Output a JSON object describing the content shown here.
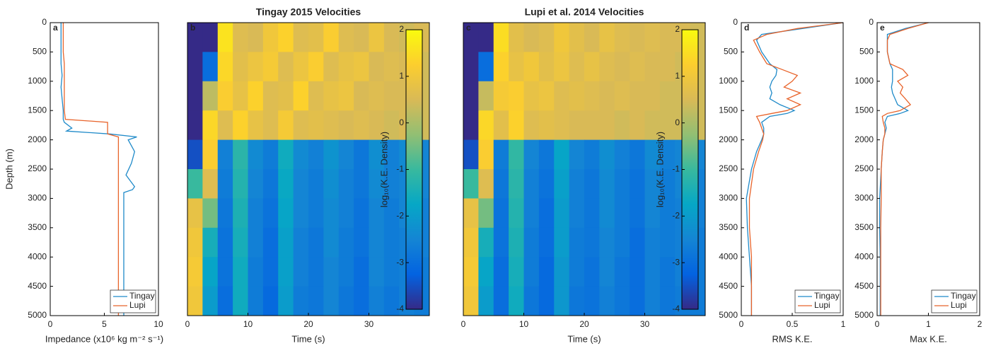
{
  "chart_data": [
    {
      "type": "line",
      "label": "a",
      "xlabel": "Impedance (x10⁶ kg m⁻² s⁻¹)",
      "ylabel": "Depth (m)",
      "xlim": [
        0,
        10
      ],
      "xticks": [
        0,
        5,
        10
      ],
      "ylim": [
        0,
        5000
      ],
      "yreverse": true,
      "yticks": [
        0,
        500,
        1000,
        1500,
        2000,
        2500,
        3000,
        3500,
        4000,
        4500,
        5000
      ],
      "y": [
        0,
        250,
        500,
        700,
        900,
        1100,
        1300,
        1500,
        1650,
        1700,
        1800,
        1850,
        1900,
        1950,
        2000,
        2200,
        2400,
        2600,
        2800,
        2850,
        2900,
        3500,
        4000,
        4500,
        5000
      ],
      "series": [
        {
          "name": "Tingay",
          "color": "#1f8ac9",
          "values": [
            1.0,
            1.0,
            1.0,
            1.0,
            1.1,
            1.0,
            1.1,
            1.2,
            1.2,
            1.3,
            2.0,
            1.5,
            5.5,
            8.0,
            7.2,
            7.8,
            7.5,
            7.0,
            7.8,
            7.6,
            6.8,
            6.8,
            6.8,
            6.8,
            6.8
          ]
        },
        {
          "name": "Lupi",
          "color": "#e8632a",
          "values": [
            1.2,
            1.2,
            1.2,
            1.3,
            1.3,
            1.3,
            1.3,
            1.3,
            1.4,
            5.3,
            5.3,
            5.3,
            5.3,
            6.3,
            6.3,
            6.3,
            6.3,
            6.3,
            6.3,
            6.3,
            6.3,
            6.3,
            6.3,
            6.3,
            6.3
          ]
        }
      ],
      "legend": "lower right"
    },
    {
      "type": "heatmap",
      "label": "b",
      "title": "Tingay 2015 Velocities",
      "xlabel": "Time (s)",
      "xlim": [
        0,
        40
      ],
      "xticks": [
        0,
        10,
        20,
        30
      ],
      "ylim": [
        0,
        5000
      ],
      "yreverse": true,
      "values": [
        [
          -4,
          -4,
          1.6,
          0.6,
          0.5,
          1.0,
          1.3,
          0.6,
          0.7,
          1.2,
          0.6,
          0.5,
          0.9,
          0.5,
          0.4,
          0.5
        ],
        [
          -4,
          -3,
          1.4,
          0.7,
          0.9,
          1.1,
          0.6,
          0.9,
          1.2,
          0.6,
          0.8,
          0.9,
          0.5,
          0.6,
          0.5,
          0.4
        ],
        [
          -4,
          0.2,
          1.2,
          0.8,
          1.3,
          0.6,
          0.7,
          1.3,
          0.6,
          0.8,
          0.9,
          0.5,
          0.6,
          0.5,
          0.5,
          0.4
        ],
        [
          -4,
          1.4,
          0.6,
          1.3,
          0.8,
          0.6,
          1.1,
          0.6,
          0.7,
          0.6,
          0.5,
          0.6,
          0.5,
          0.4,
          0.5,
          0.4
        ],
        [
          -3.5,
          1.2,
          -2.6,
          -1.2,
          -2.4,
          -2.7,
          -1.6,
          -2.4,
          -2.6,
          -2.2,
          -2.5,
          -2.8,
          -2.3,
          -2.6,
          -2.4,
          -2.5
        ],
        [
          -1,
          0.6,
          -2.7,
          -1.3,
          -2.5,
          -2.8,
          -1.7,
          -2.5,
          -2.7,
          -2.3,
          -2.6,
          -2.8,
          -2.4,
          -2.6,
          -2.5,
          -2.5
        ],
        [
          0.8,
          -0.5,
          -2.8,
          -1.4,
          -2.6,
          -2.9,
          -1.8,
          -2.5,
          -2.7,
          -2.4,
          -2.6,
          -2.9,
          -2.5,
          -2.7,
          -2.5,
          -2.6
        ],
        [
          1.0,
          -1.5,
          -2.9,
          -1.5,
          -2.6,
          -3.0,
          -1.9,
          -2.6,
          -2.8,
          -2.4,
          -2.7,
          -2.9,
          -2.5,
          -2.7,
          -2.6,
          -2.6
        ],
        [
          1.1,
          -1.8,
          -2.9,
          -1.6,
          -2.7,
          -3.0,
          -1.9,
          -2.6,
          -2.8,
          -2.5,
          -2.7,
          -3.0,
          -2.5,
          -2.7,
          -2.6,
          -2.7
        ],
        [
          1.0,
          -2.0,
          -3.0,
          -1.6,
          -2.7,
          -3.1,
          -2.0,
          -2.7,
          -2.8,
          -2.5,
          -2.8,
          -3.0,
          -2.6,
          -2.8,
          -2.6,
          -2.7
        ]
      ],
      "colormap": [
        "#352a87",
        "#0363e1",
        "#1485d4",
        "#06a7c6",
        "#38b99e",
        "#92bf73",
        "#d9ba56",
        "#fcce2e",
        "#f9fb0e"
      ],
      "clim": [
        -4,
        2
      ],
      "cticks": [
        -4,
        -3,
        -2,
        -1,
        0,
        1,
        2
      ],
      "clabel": "log₁₀(K.E. Density)"
    },
    {
      "type": "heatmap",
      "label": "c",
      "title": "Lupi et al. 2014 Velocities",
      "xlabel": "Time (s)",
      "xlim": [
        0,
        40
      ],
      "xticks": [
        0,
        10,
        20,
        30
      ],
      "ylim": [
        0,
        5000
      ],
      "yreverse": true,
      "values": [
        [
          -4,
          -4,
          1.5,
          0.7,
          0.5,
          0.6,
          1.0,
          0.7,
          0.5,
          0.8,
          0.6,
          0.5,
          0.6,
          0.5,
          0.5,
          0.4
        ],
        [
          -4,
          -3,
          1.3,
          0.8,
          1.0,
          0.7,
          0.9,
          0.6,
          0.8,
          0.6,
          0.5,
          0.6,
          0.5,
          0.5,
          0.4,
          0.4
        ],
        [
          -4,
          0.3,
          1.1,
          1.2,
          0.8,
          0.9,
          0.6,
          0.7,
          0.6,
          0.5,
          0.6,
          0.5,
          0.5,
          0.4,
          0.4,
          0.4
        ],
        [
          -4,
          1.4,
          0.7,
          1.3,
          0.6,
          0.7,
          0.6,
          0.5,
          0.5,
          0.5,
          0.4,
          0.5,
          0.4,
          0.4,
          0.4,
          0.4
        ],
        [
          -3.5,
          1.2,
          -2.7,
          -1.1,
          -2.5,
          -2.8,
          -1.8,
          -2.5,
          -2.7,
          -2.3,
          -2.6,
          -2.8,
          -2.4,
          -2.6,
          -2.5,
          -2.5
        ],
        [
          -1,
          0.6,
          -2.8,
          -1.2,
          -2.6,
          -2.9,
          -1.9,
          -2.6,
          -2.8,
          -2.4,
          -2.7,
          -2.9,
          -2.5,
          -2.7,
          -2.5,
          -2.6
        ],
        [
          0.8,
          -0.5,
          -2.9,
          -1.3,
          -2.6,
          -3.0,
          -2.0,
          -2.6,
          -2.8,
          -2.4,
          -2.7,
          -2.9,
          -2.5,
          -2.7,
          -2.6,
          -2.6
        ],
        [
          1.0,
          -1.5,
          -2.9,
          -1.4,
          -2.7,
          -3.0,
          -2.0,
          -2.7,
          -2.8,
          -2.5,
          -2.7,
          -3.0,
          -2.6,
          -2.7,
          -2.6,
          -2.7
        ],
        [
          1.1,
          -1.8,
          -3.0,
          -1.5,
          -2.7,
          -3.1,
          -2.1,
          -2.7,
          -2.9,
          -2.5,
          -2.8,
          -3.0,
          -2.6,
          -2.8,
          -2.6,
          -2.7
        ],
        [
          1.0,
          -2.0,
          -3.0,
          -1.6,
          -2.8,
          -3.1,
          -2.1,
          -2.8,
          -2.9,
          -2.6,
          -2.8,
          -3.0,
          -2.6,
          -2.8,
          -2.7,
          -2.7
        ]
      ],
      "colormap": [
        "#352a87",
        "#0363e1",
        "#1485d4",
        "#06a7c6",
        "#38b99e",
        "#92bf73",
        "#d9ba56",
        "#fcce2e",
        "#f9fb0e"
      ],
      "clim": [
        -4,
        2
      ],
      "cticks": [
        -4,
        -3,
        -2,
        -1,
        0,
        1,
        2
      ],
      "clabel": "log₁₀(K.E. Density)"
    },
    {
      "type": "line",
      "label": "d",
      "xlabel": "RMS K.E.",
      "xlim": [
        0,
        1
      ],
      "xticks": [
        0,
        0.5,
        1
      ],
      "ylim": [
        0,
        5000
      ],
      "yreverse": true,
      "yticks": [
        0,
        500,
        1000,
        1500,
        2000,
        2500,
        3000,
        3500,
        4000,
        4500,
        5000
      ],
      "y": [
        0,
        100,
        200,
        300,
        500,
        700,
        800,
        900,
        1000,
        1100,
        1200,
        1300,
        1400,
        1500,
        1550,
        1600,
        1700,
        1800,
        1900,
        2000,
        2200,
        2500,
        3000,
        3500,
        4000,
        4500,
        5000
      ],
      "series": [
        {
          "name": "Tingay",
          "color": "#1f8ac9",
          "values": [
            1.0,
            0.6,
            0.2,
            0.15,
            0.2,
            0.28,
            0.35,
            0.34,
            0.3,
            0.28,
            0.3,
            0.28,
            0.38,
            0.52,
            0.45,
            0.28,
            0.2,
            0.22,
            0.22,
            0.2,
            0.15,
            0.1,
            0.05,
            0.06,
            0.08,
            0.1,
            0.1
          ]
        },
        {
          "name": "Lupi",
          "color": "#e8632a",
          "values": [
            1.0,
            0.55,
            0.25,
            0.12,
            0.18,
            0.25,
            0.4,
            0.55,
            0.5,
            0.42,
            0.58,
            0.45,
            0.58,
            0.45,
            0.3,
            0.15,
            0.18,
            0.2,
            0.22,
            0.21,
            0.17,
            0.12,
            0.08,
            0.08,
            0.1,
            0.1,
            0.1
          ]
        }
      ],
      "legend": "lower right"
    },
    {
      "type": "line",
      "label": "e",
      "xlabel": "Max K.E.",
      "xlim": [
        0,
        2
      ],
      "xticks": [
        0,
        1,
        2
      ],
      "ylim": [
        0,
        5000
      ],
      "yreverse": true,
      "yticks": [
        0,
        500,
        1000,
        1500,
        2000,
        2500,
        3000,
        3500,
        4000,
        4500,
        5000
      ],
      "y": [
        0,
        100,
        200,
        300,
        500,
        700,
        800,
        900,
        1000,
        1100,
        1200,
        1300,
        1400,
        1500,
        1550,
        1600,
        1700,
        1800,
        1900,
        2000,
        2200,
        2500,
        3000,
        3500,
        4000,
        4500,
        5000
      ],
      "series": [
        {
          "name": "Tingay",
          "color": "#1f8ac9",
          "values": [
            1.0,
            0.55,
            0.2,
            0.2,
            0.2,
            0.25,
            0.3,
            0.3,
            0.3,
            0.28,
            0.3,
            0.35,
            0.4,
            0.6,
            0.45,
            0.2,
            0.15,
            0.18,
            0.15,
            0.12,
            0.1,
            0.08,
            0.05,
            0.05,
            0.06,
            0.06,
            0.06
          ]
        },
        {
          "name": "Lupi",
          "color": "#e8632a",
          "values": [
            1.0,
            0.6,
            0.25,
            0.2,
            0.2,
            0.25,
            0.5,
            0.6,
            0.4,
            0.5,
            0.45,
            0.55,
            0.65,
            0.45,
            0.2,
            0.1,
            0.12,
            0.15,
            0.15,
            0.12,
            0.1,
            0.08,
            0.08,
            0.07,
            0.07,
            0.07,
            0.07
          ]
        }
      ],
      "legend": "lower right"
    }
  ]
}
